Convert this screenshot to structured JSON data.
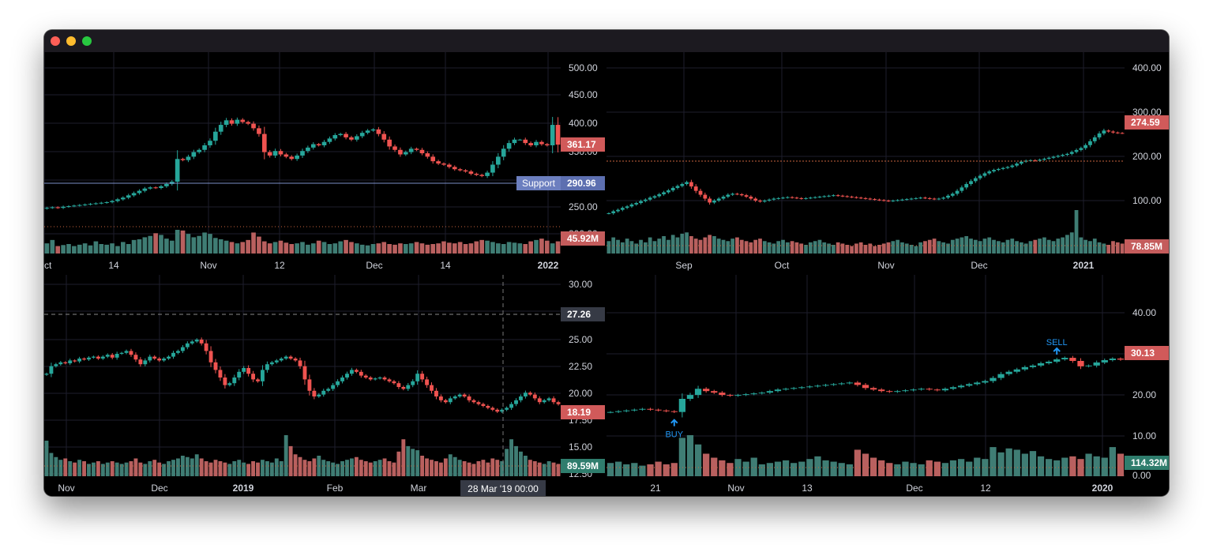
{
  "window": {
    "traffic_lights": {
      "close": "#fe5f57",
      "minimize": "#febc2e",
      "zoom": "#28c840"
    }
  },
  "theme": {
    "background": "#000000",
    "grid": "#1e1e2c",
    "axis_text": "#d1d4dc",
    "up": "#26a69a",
    "down": "#ef5350",
    "up_volume": "#3f7d74",
    "down_volume": "#b9605f"
  },
  "chart_data": [
    {
      "id": "pane-top-left",
      "type": "candlestick",
      "y_axis": {
        "ticks": [
          "500.00",
          "450.00",
          "400.00",
          "350.00",
          "300.00",
          "250.00",
          "200.00"
        ],
        "range": [
          185,
          510
        ]
      },
      "x_axis": {
        "ticks": [
          "ct",
          "14",
          "Nov",
          "12",
          "Dec",
          "14",
          "2022"
        ]
      },
      "series": {
        "close": [
          250,
          251,
          250,
          252,
          253,
          254,
          255,
          256,
          257,
          258,
          259,
          260,
          262,
          265,
          268,
          272,
          276,
          280,
          284,
          286,
          285,
          288,
          292,
          296,
          336,
          334,
          340,
          348,
          352,
          360,
          368,
          384,
          396,
          404,
          398,
          405,
          401,
          398,
          390,
          380,
          348,
          342,
          350,
          344,
          340,
          336,
          342,
          350,
          356,
          362,
          360,
          366,
          372,
          378,
          380,
          374,
          370,
          376,
          382,
          386,
          388,
          380,
          370,
          358,
          352,
          344,
          348,
          354,
          352,
          346,
          340,
          332,
          328,
          326,
          322,
          318,
          316,
          314,
          310,
          308,
          306,
          312,
          326,
          340,
          354,
          364,
          370,
          370,
          364,
          360,
          366,
          362,
          360,
          396,
          361.17
        ]
      },
      "price_line": {
        "label": "Support",
        "value": "290.96"
      },
      "last_price": "361.17",
      "last_volume": "45.92M",
      "volume": [
        30,
        40,
        22,
        25,
        28,
        22,
        26,
        30,
        24,
        36,
        28,
        26,
        30,
        22,
        34,
        28,
        40,
        42,
        48,
        52,
        60,
        55,
        44,
        38,
        70,
        68,
        58,
        48,
        52,
        62,
        58,
        46,
        42,
        38,
        34,
        30,
        34,
        40,
        62,
        50,
        36,
        30,
        34,
        38,
        32,
        28,
        30,
        34,
        26,
        30,
        38,
        34,
        28,
        30,
        36,
        40,
        34,
        30,
        26,
        24,
        28,
        30,
        34,
        28,
        26,
        30,
        28,
        30,
        34,
        30,
        26,
        28,
        30,
        36,
        32,
        30,
        34,
        28,
        30,
        36,
        40,
        38,
        34,
        30,
        28,
        34,
        32,
        30,
        28,
        36,
        40,
        44,
        38,
        30,
        36
      ]
    },
    {
      "id": "pane-top-right",
      "type": "candlestick",
      "y_axis": {
        "ticks": [
          "400.00",
          "300.00",
          "200.00",
          "100.00"
        ],
        "range": [
          45,
          425
        ]
      },
      "x_axis": {
        "ticks": [
          "Sep",
          "Oct",
          "Nov",
          "Dec",
          "2021"
        ]
      },
      "series": {
        "close": [
          110,
          114,
          117,
          121,
          124,
          128,
          131,
          135,
          138,
          142,
          145,
          149,
          153,
          157,
          162,
          166,
          170,
          174,
          165,
          156,
          148,
          140,
          132,
          136,
          140,
          144,
          148,
          150,
          149,
          147,
          144,
          140,
          136,
          134,
          136,
          138,
          140,
          141,
          142,
          143,
          142,
          141,
          140,
          141,
          142,
          143,
          144,
          145,
          146,
          147,
          146,
          145,
          144,
          143,
          142,
          141,
          140,
          139,
          138,
          137,
          136,
          135,
          136,
          137,
          138,
          139,
          140,
          141,
          142,
          141,
          140,
          139,
          140,
          142,
          146,
          150,
          156,
          163,
          170,
          176,
          182,
          187,
          192,
          196,
          199,
          201,
          203,
          205,
          208,
          212,
          216,
          218,
          219,
          218,
          220,
          222,
          224,
          226,
          228,
          230,
          232,
          236,
          240,
          244,
          250,
          258,
          266,
          274,
          280,
          278,
          276,
          275,
          274.59
        ]
      },
      "price_line": {
        "value": "183.00"
      },
      "last_price": "274.59",
      "last_volume": "78.85M",
      "volume": [
        20,
        26,
        22,
        18,
        24,
        20,
        16,
        22,
        18,
        26,
        20,
        24,
        28,
        22,
        30,
        26,
        32,
        34,
        28,
        24,
        22,
        26,
        30,
        28,
        24,
        22,
        20,
        24,
        26,
        22,
        20,
        18,
        22,
        24,
        20,
        18,
        16,
        20,
        22,
        18,
        20,
        18,
        16,
        14,
        18,
        20,
        22,
        18,
        16,
        14,
        18,
        16,
        14,
        12,
        16,
        18,
        14,
        16,
        12,
        14,
        16,
        18,
        20,
        22,
        18,
        16,
        14,
        12,
        18,
        20,
        22,
        24,
        20,
        18,
        16,
        22,
        24,
        26,
        28,
        24,
        22,
        20,
        24,
        26,
        22,
        20,
        18,
        22,
        24,
        20,
        18,
        16,
        20,
        22,
        24,
        26,
        22,
        20,
        24,
        26,
        30,
        34,
        70,
        26,
        22,
        20,
        24,
        18,
        16,
        14,
        20,
        18,
        16
      ]
    },
    {
      "id": "pane-bottom-left",
      "type": "candlestick",
      "y_axis": {
        "ticks": [
          "30.00",
          "27.50",
          "25.00",
          "22.50",
          "20.00",
          "17.50",
          "15.00",
          "12.50"
        ],
        "range": [
          12.0,
          31.0
        ]
      },
      "x_axis": {
        "ticks": [
          "Nov",
          "Dec",
          "2019",
          "Feb",
          "Mar"
        ]
      },
      "series": {
        "close": [
          21.4,
          22.2,
          22.4,
          22.6,
          22.5,
          22.8,
          22.7,
          23.0,
          22.9,
          23.1,
          23.2,
          23.0,
          23.2,
          23.4,
          23.1,
          23.5,
          23.6,
          23.8,
          23.4,
          22.9,
          22.4,
          22.8,
          23.2,
          23.0,
          22.8,
          23.0,
          23.2,
          23.6,
          23.8,
          24.2,
          24.6,
          24.8,
          25.0,
          24.6,
          23.8,
          22.6,
          21.8,
          21.0,
          20.2,
          20.4,
          21.0,
          21.6,
          22.0,
          21.4,
          20.8,
          20.6,
          21.8,
          22.4,
          22.6,
          22.8,
          23.0,
          23.2,
          23.0,
          22.8,
          22.2,
          20.8,
          19.6,
          19.0,
          19.2,
          19.6,
          19.8,
          20.2,
          20.6,
          21.0,
          21.4,
          21.8,
          21.6,
          21.2,
          21.0,
          20.8,
          20.9,
          21.0,
          20.8,
          20.6,
          20.4,
          20.0,
          19.8,
          20.2,
          20.6,
          21.4,
          20.8,
          20.2,
          19.6,
          19.0,
          18.6,
          18.4,
          18.8,
          19.0,
          19.2,
          19.0,
          18.6,
          18.4,
          18.2,
          18.0,
          17.8,
          17.6,
          17.4,
          17.6,
          17.8,
          18.2,
          18.6,
          19.0,
          19.4,
          19.2,
          18.8,
          18.4,
          18.6,
          18.8,
          18.4,
          18.19
        ]
      },
      "price_line": {
        "value": "27.26"
      },
      "crosshair": {
        "label": "28 Mar '19   00:00"
      },
      "last_price": "18.19",
      "last_volume": "89.59M",
      "volume": [
        52,
        34,
        28,
        24,
        26,
        22,
        20,
        24,
        22,
        18,
        20,
        22,
        18,
        20,
        22,
        20,
        18,
        20,
        22,
        26,
        20,
        18,
        22,
        24,
        20,
        18,
        22,
        24,
        26,
        30,
        28,
        26,
        32,
        26,
        22,
        20,
        24,
        22,
        20,
        18,
        22,
        24,
        20,
        18,
        22,
        20,
        24,
        22,
        20,
        26,
        22,
        60,
        44,
        32,
        28,
        24,
        22,
        26,
        30,
        24,
        22,
        20,
        18,
        22,
        24,
        26,
        28,
        24,
        22,
        20,
        22,
        24,
        26,
        22,
        20,
        36,
        54,
        44,
        40,
        38,
        30,
        26,
        24,
        22,
        20,
        26,
        32,
        28,
        24,
        22,
        20,
        18,
        22,
        24,
        20,
        26,
        24,
        22,
        40,
        54,
        44,
        36,
        30,
        24,
        22,
        20,
        18,
        22,
        20,
        18
      ]
    },
    {
      "id": "pane-bottom-right",
      "type": "candlestick",
      "y_axis": {
        "ticks": [
          "40.00",
          "30.00",
          "20.00",
          "10.00",
          "0.00"
        ],
        "range": [
          0,
          50
        ]
      },
      "x_axis": {
        "ticks": [
          "21",
          "Nov",
          "13",
          "Dec",
          "12",
          "2020"
        ]
      },
      "series": {
        "close": [
          16.6,
          16.8,
          17.0,
          17.2,
          17.4,
          17.2,
          17.0,
          16.8,
          16.6,
          20.0,
          21.0,
          22.6,
          22.0,
          21.6,
          21.0,
          20.8,
          21.0,
          21.2,
          21.4,
          21.6,
          22.0,
          22.4,
          22.6,
          22.8,
          23.0,
          23.2,
          23.4,
          23.6,
          23.8,
          24.0,
          24.2,
          23.6,
          22.8,
          22.4,
          22.0,
          21.8,
          22.0,
          22.2,
          22.4,
          22.6,
          22.4,
          22.2,
          22.6,
          23.0,
          23.4,
          23.8,
          24.2,
          24.6,
          25.4,
          26.4,
          27.0,
          27.6,
          28.2,
          28.6,
          29.2,
          29.6,
          30.2,
          30.6,
          29.8,
          28.4,
          28.6,
          29.4,
          30.0,
          30.4,
          30.13
        ]
      },
      "markers": [
        {
          "label": "BUY",
          "index": 8
        },
        {
          "label": "SELL",
          "index": 56
        }
      ],
      "price_line": {
        "value": "114.32"
      },
      "last_price": "30.13",
      "last_volume": "114.32M",
      "volume": [
        20,
        22,
        18,
        20,
        16,
        18,
        22,
        18,
        20,
        58,
        62,
        48,
        34,
        28,
        24,
        20,
        26,
        22,
        28,
        18,
        20,
        22,
        24,
        20,
        22,
        26,
        30,
        24,
        22,
        20,
        18,
        40,
        34,
        28,
        24,
        20,
        18,
        22,
        20,
        18,
        24,
        22,
        20,
        24,
        26,
        22,
        28,
        26,
        44,
        36,
        42,
        40,
        34,
        38,
        30,
        26,
        24,
        28,
        30,
        26,
        34,
        30,
        28,
        44,
        34
      ]
    }
  ]
}
